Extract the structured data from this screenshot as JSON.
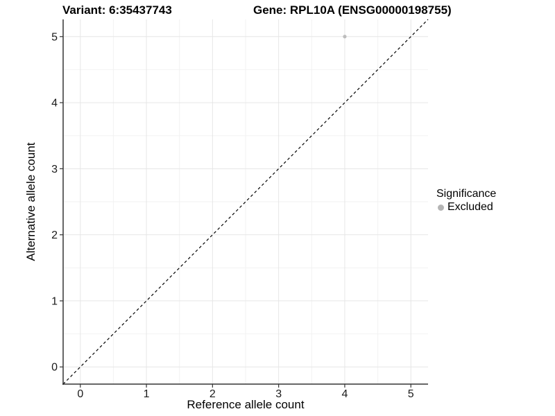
{
  "titles": {
    "left": "Variant: 6:35437743",
    "right": "Gene: RPL10A (ENSG00000198755)"
  },
  "axes": {
    "x_label": "Reference allele count",
    "y_label": "Alternative allele count"
  },
  "legend": {
    "title": "Significance",
    "entries": [
      {
        "label": "Excluded",
        "color": "#b5b5b5"
      }
    ]
  },
  "colors": {
    "axis_line": "#333333",
    "tick_label": "#1a1a1a",
    "grid_major": "#e6e6e6",
    "grid_minor": "#f2f2f2",
    "point": "#bdbdbd",
    "reference_line": "#000000"
  },
  "chart_data": {
    "type": "scatter",
    "title": "Variant: 6:35437743 | Gene: RPL10A (ENSG00000198755)",
    "xlabel": "Reference allele count",
    "ylabel": "Alternative allele count",
    "xlim": [
      -0.26,
      5.26
    ],
    "ylim": [
      -0.26,
      5.26
    ],
    "x_ticks": [
      0,
      1,
      2,
      3,
      4,
      5
    ],
    "y_ticks": [
      0,
      1,
      2,
      3,
      4,
      5
    ],
    "grid": true,
    "legend_position": "right",
    "series": [
      {
        "name": "Excluded",
        "color": "#bdbdbd",
        "points": [
          {
            "x": 4,
            "y": 5
          }
        ]
      }
    ],
    "reference_line": {
      "type": "identity",
      "style": "dashed",
      "color": "#000000"
    }
  }
}
